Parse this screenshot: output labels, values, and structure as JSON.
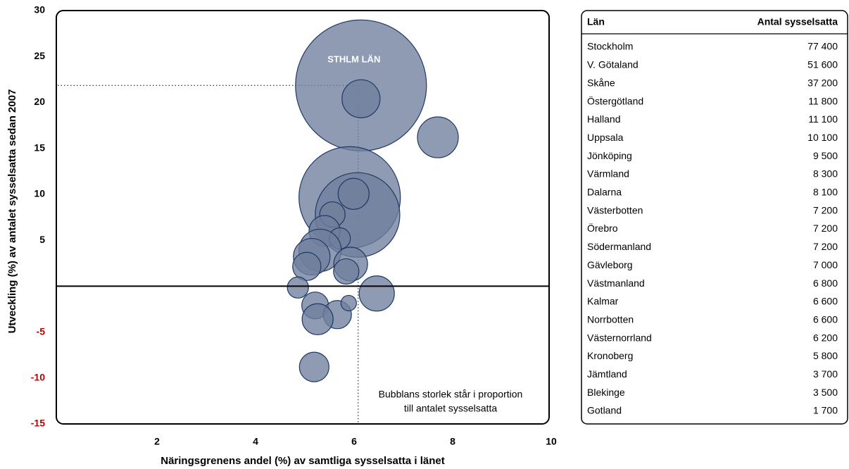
{
  "chart_data": {
    "type": "bubble",
    "x_label": "Näringsgrenens andel (%) av samtliga sysselsatta i länet",
    "y_label": "Utveckling (%) av antalet sysselsatta sedan 2007",
    "x": [
      6.14,
      6.14,
      7.7,
      5.91,
      6.07,
      5.99,
      5.56,
      5.4,
      5.71,
      5.31,
      5.14,
      5.04,
      5.93,
      5.84,
      6.46,
      4.86,
      5.21,
      5.66,
      5.26,
      5.89,
      5.19
    ],
    "y": [
      21.85,
      20.4,
      16.2,
      9.66,
      7.75,
      10.05,
      7.8,
      6.0,
      5.2,
      3.9,
      3.2,
      2.15,
      2.4,
      1.6,
      -0.8,
      -0.15,
      -2.1,
      -3.1,
      -3.6,
      -1.85,
      -8.8
    ],
    "sizes": [
      77400,
      6535,
      7540,
      46470,
      32270,
      4340,
      2900,
      4340,
      2020,
      8070,
      6060,
      3590,
      5160,
      2900,
      5600,
      2020,
      3240,
      3590,
      4340,
      1085,
      3950
    ],
    "color": "#6f7f9c",
    "edge_color": "#1f3864",
    "xlim": [
      0,
      10
    ],
    "xticks": [
      2,
      4,
      6,
      8,
      10
    ],
    "ylim": [
      -15,
      30
    ],
    "yticks": [
      30,
      25,
      20,
      15,
      10,
      5,
      -5,
      -10,
      -15
    ],
    "negative_tick_color": "#c00000",
    "zero_line": true,
    "annotations": [
      "STHLM LÄN",
      "Bubblans storlek står i proportion",
      "till antalet sysselsatta"
    ]
  },
  "table": {
    "columns": [
      "Län",
      "Antal sysselsatta"
    ],
    "rows": [
      [
        "Stockholm",
        "77 400"
      ],
      [
        "V. Götaland",
        "51 600"
      ],
      [
        "Skåne",
        "37 200"
      ],
      [
        "Östergötland",
        "11 800"
      ],
      [
        "Halland",
        "11 100"
      ],
      [
        "Uppsala",
        "10 100"
      ],
      [
        "Jönköping",
        "9 500"
      ],
      [
        "Värmland",
        "8 300"
      ],
      [
        "Dalarna",
        "8 100"
      ],
      [
        "Västerbotten",
        "7 200"
      ],
      [
        "Örebro",
        "7 200"
      ],
      [
        "Södermanland",
        "7 200"
      ],
      [
        "Gävleborg",
        "7 000"
      ],
      [
        "Västmanland",
        "6 800"
      ],
      [
        "Kalmar",
        "6 600"
      ],
      [
        "Norrbotten",
        "6 600"
      ],
      [
        "Västernorrland",
        "6 200"
      ],
      [
        "Kronoberg",
        "5 800"
      ],
      [
        "Jämtland",
        "3 700"
      ],
      [
        "Blekinge",
        "3 500"
      ],
      [
        "Gotland",
        "1 700"
      ]
    ]
  }
}
